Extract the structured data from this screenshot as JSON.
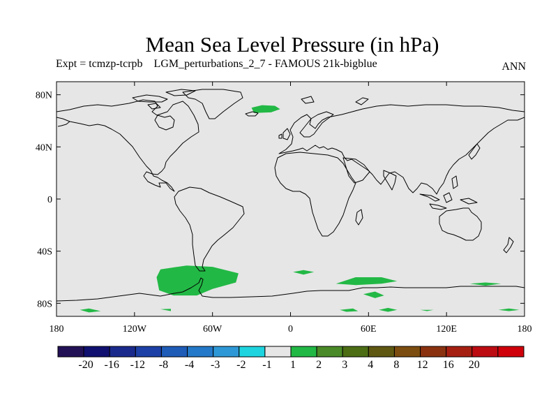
{
  "title": "Mean Sea Level Pressure (in hPa)",
  "subtitle": "Expt = tcmzp-tcrpb    LGM_perturbations_2_7 - FAMOUS 21k-bigblue",
  "season": "ANN",
  "map": {
    "projection": "cylindrical equidistant",
    "lon_range": [
      -180,
      180
    ],
    "lat_range": [
      -90,
      90
    ],
    "background_color": "#e6e6e6",
    "coastline_color": "#000000",
    "x_ticks": [
      {
        "value": -180,
        "label": "180"
      },
      {
        "value": -120,
        "label": "120W"
      },
      {
        "value": -60,
        "label": "60W"
      },
      {
        "value": 0,
        "label": "0"
      },
      {
        "value": 60,
        "label": "60E"
      },
      {
        "value": 120,
        "label": "120E"
      },
      {
        "value": 180,
        "label": "180"
      }
    ],
    "y_ticks": [
      {
        "value": 80,
        "label": "80N"
      },
      {
        "value": 40,
        "label": "40N"
      },
      {
        "value": 0,
        "label": "0"
      },
      {
        "value": -40,
        "label": "40S"
      },
      {
        "value": -80,
        "label": "80S"
      }
    ],
    "anomaly_fill_color": "#22b845",
    "anomaly_range_label": "1 to 2 hPa",
    "anomaly_regions": [
      {
        "name": "greenland-sea",
        "points": [
          [
            -28,
            66
          ],
          [
            -15,
            66.5
          ],
          [
            -8,
            69
          ],
          [
            -12,
            71.5
          ],
          [
            -22,
            72
          ],
          [
            -30,
            70
          ]
        ]
      },
      {
        "name": "amundsen-bellingshausen",
        "points": [
          [
            -100,
            -54
          ],
          [
            -80,
            -51
          ],
          [
            -60,
            -52
          ],
          [
            -40,
            -57
          ],
          [
            -42,
            -64
          ],
          [
            -60,
            -69
          ],
          [
            -72,
            -74
          ],
          [
            -90,
            -74
          ],
          [
            -101,
            -70
          ],
          [
            -103,
            -60
          ]
        ]
      },
      {
        "name": "weddell-small",
        "points": [
          [
            2,
            -56
          ],
          [
            10,
            -54.5
          ],
          [
            18,
            -56
          ],
          [
            10,
            -58
          ]
        ]
      },
      {
        "name": "indian-ocean-sector",
        "points": [
          [
            35,
            -65
          ],
          [
            50,
            -60
          ],
          [
            70,
            -60
          ],
          [
            82,
            -63
          ],
          [
            70,
            -65
          ],
          [
            50,
            -66
          ]
        ]
      },
      {
        "name": "indian-ocean-south",
        "points": [
          [
            56,
            -73
          ],
          [
            65,
            -71
          ],
          [
            72,
            -74
          ],
          [
            65,
            -76
          ]
        ]
      },
      {
        "name": "ross-sea-small",
        "points": [
          [
            -162,
            -85
          ],
          [
            -155,
            -84
          ],
          [
            -146,
            -86
          ],
          [
            -155,
            -87
          ]
        ]
      },
      {
        "name": "antarctic-61w",
        "points": [
          [
            -100,
            -84.5
          ],
          [
            -92,
            -84.2
          ],
          [
            -92,
            -86
          ]
        ]
      },
      {
        "name": "antarctic-40e",
        "points": [
          [
            38,
            -85
          ],
          [
            48,
            -84
          ],
          [
            52,
            -86
          ],
          [
            43,
            -86.5
          ]
        ]
      },
      {
        "name": "antarctic-75e",
        "points": [
          [
            68,
            -85
          ],
          [
            75,
            -83.5
          ],
          [
            82,
            -85
          ],
          [
            75,
            -86.5
          ]
        ]
      },
      {
        "name": "antarctic-105e",
        "points": [
          [
            100,
            -85
          ],
          [
            110,
            -85
          ],
          [
            105,
            -86
          ]
        ]
      },
      {
        "name": "antarctic-160e",
        "points": [
          [
            160,
            -85
          ],
          [
            168,
            -84
          ],
          [
            176,
            -85
          ],
          [
            168,
            -86
          ]
        ]
      },
      {
        "name": "ross-coast-140e",
        "points": [
          [
            138,
            -65
          ],
          [
            150,
            -64
          ],
          [
            162,
            -65
          ],
          [
            150,
            -66.5
          ]
        ]
      }
    ]
  },
  "colorbar": {
    "colors": [
      "#231156",
      "#101070",
      "#1a2a8c",
      "#1c40a6",
      "#1e5cb8",
      "#2479c8",
      "#2e98d6",
      "#1ed4df",
      "#e6e6e6",
      "#22b845",
      "#4a8a28",
      "#4c6d14",
      "#5e5812",
      "#7c4d10",
      "#8a3210",
      "#a62012",
      "#bc0c12",
      "#cf000a"
    ],
    "labels": [
      "-20",
      "-16",
      "-12",
      "-8",
      "-4",
      "-3",
      "-2",
      "-1",
      "1",
      "2",
      "3",
      "4",
      "8",
      "12",
      "16",
      "20"
    ]
  }
}
